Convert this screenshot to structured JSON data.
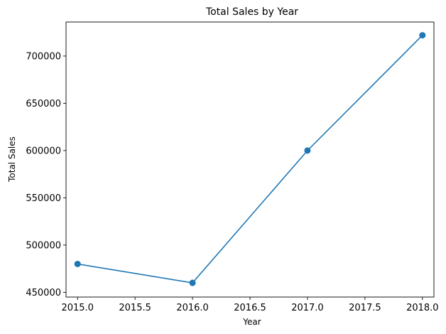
{
  "chart_data": {
    "type": "line",
    "title": "Total Sales by Year",
    "xlabel": "Year",
    "ylabel": "Total Sales",
    "xlim": [
      2014.9,
      2018.1
    ],
    "ylim": [
      445000,
      736000
    ],
    "x_ticks": [
      2015.0,
      2015.5,
      2016.0,
      2016.5,
      2017.0,
      2017.5,
      2018.0
    ],
    "x_tick_labels": [
      "2015.0",
      "2015.5",
      "2016.0",
      "2016.5",
      "2017.0",
      "2017.5",
      "2018.0"
    ],
    "y_ticks": [
      450000,
      500000,
      550000,
      600000,
      650000,
      700000
    ],
    "y_tick_labels": [
      "450000",
      "500000",
      "550000",
      "600000",
      "650000",
      "700000"
    ],
    "grid": false,
    "marker": "circle",
    "color": "#1f77b4",
    "series": [
      {
        "x": [
          2015,
          2016,
          2017,
          2018
        ],
        "values": [
          480000,
          460000,
          600000,
          722000
        ]
      }
    ]
  }
}
